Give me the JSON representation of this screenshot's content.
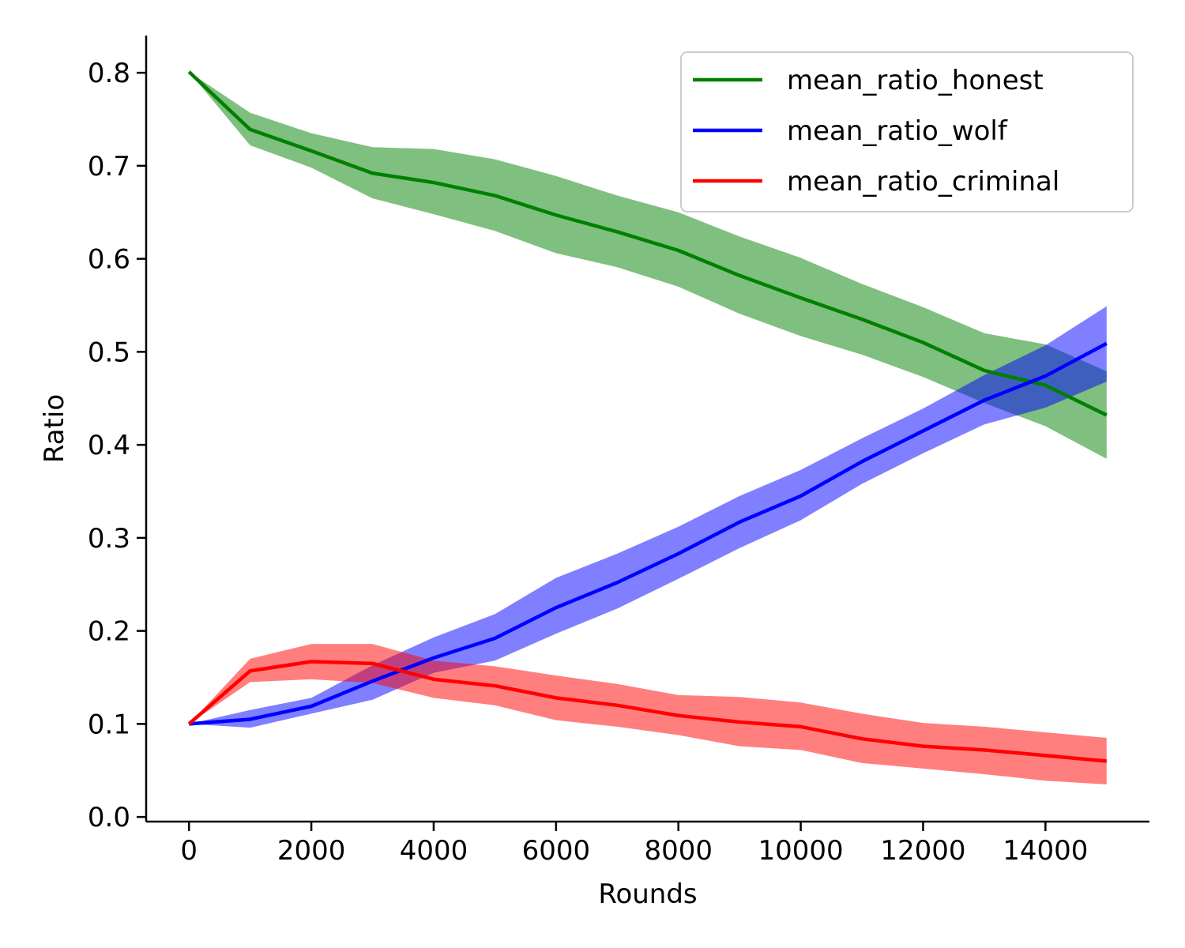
{
  "chart_data": {
    "type": "line",
    "xlabel": "Rounds",
    "ylabel": "Ratio",
    "xlim": [
      -700,
      15700
    ],
    "ylim": [
      -0.005,
      0.84
    ],
    "x_ticks": [
      0,
      2000,
      4000,
      6000,
      8000,
      10000,
      12000,
      14000
    ],
    "y_ticks": [
      0.0,
      0.1,
      0.2,
      0.3,
      0.4,
      0.5,
      0.6,
      0.7,
      0.8
    ],
    "legend_position": "top-right",
    "grid": false,
    "x": [
      0,
      1000,
      2000,
      3000,
      4000,
      5000,
      6000,
      7000,
      8000,
      9000,
      10000,
      11000,
      12000,
      13000,
      14000,
      15000
    ],
    "series": [
      {
        "name": "mean_ratio_honest",
        "color": "#008000",
        "band_color": "#008000",
        "values": [
          0.801,
          0.739,
          0.716,
          0.692,
          0.682,
          0.668,
          0.647,
          0.629,
          0.609,
          0.582,
          0.558,
          0.535,
          0.51,
          0.48,
          0.464,
          0.432
        ],
        "lower": [
          0.801,
          0.722,
          0.698,
          0.665,
          0.648,
          0.63,
          0.606,
          0.591,
          0.57,
          0.541,
          0.517,
          0.497,
          0.473,
          0.445,
          0.42,
          0.385
        ],
        "upper": [
          0.801,
          0.757,
          0.735,
          0.72,
          0.718,
          0.707,
          0.689,
          0.668,
          0.65,
          0.624,
          0.601,
          0.573,
          0.548,
          0.52,
          0.508,
          0.479
        ]
      },
      {
        "name": "mean_ratio_wolf",
        "color": "#0000ff",
        "band_color": "#0000ff",
        "values": [
          0.1,
          0.105,
          0.119,
          0.146,
          0.171,
          0.192,
          0.225,
          0.252,
          0.283,
          0.317,
          0.345,
          0.382,
          0.415,
          0.448,
          0.474,
          0.509
        ],
        "lower": [
          0.1,
          0.096,
          0.111,
          0.126,
          0.155,
          0.168,
          0.197,
          0.224,
          0.256,
          0.289,
          0.319,
          0.358,
          0.391,
          0.422,
          0.44,
          0.468
        ],
        "upper": [
          0.1,
          0.115,
          0.128,
          0.163,
          0.193,
          0.218,
          0.257,
          0.283,
          0.312,
          0.345,
          0.373,
          0.407,
          0.439,
          0.475,
          0.507,
          0.549
        ]
      },
      {
        "name": "mean_ratio_criminal",
        "color": "#ff0000",
        "band_color": "#ff0000",
        "values": [
          0.1,
          0.157,
          0.167,
          0.165,
          0.148,
          0.141,
          0.128,
          0.12,
          0.109,
          0.102,
          0.097,
          0.084,
          0.076,
          0.072,
          0.066,
          0.06
        ],
        "lower": [
          0.1,
          0.145,
          0.148,
          0.144,
          0.128,
          0.12,
          0.104,
          0.097,
          0.088,
          0.076,
          0.072,
          0.058,
          0.052,
          0.046,
          0.039,
          0.035
        ],
        "upper": [
          0.1,
          0.17,
          0.186,
          0.186,
          0.168,
          0.162,
          0.152,
          0.143,
          0.131,
          0.129,
          0.123,
          0.111,
          0.101,
          0.097,
          0.091,
          0.085
        ]
      }
    ]
  }
}
